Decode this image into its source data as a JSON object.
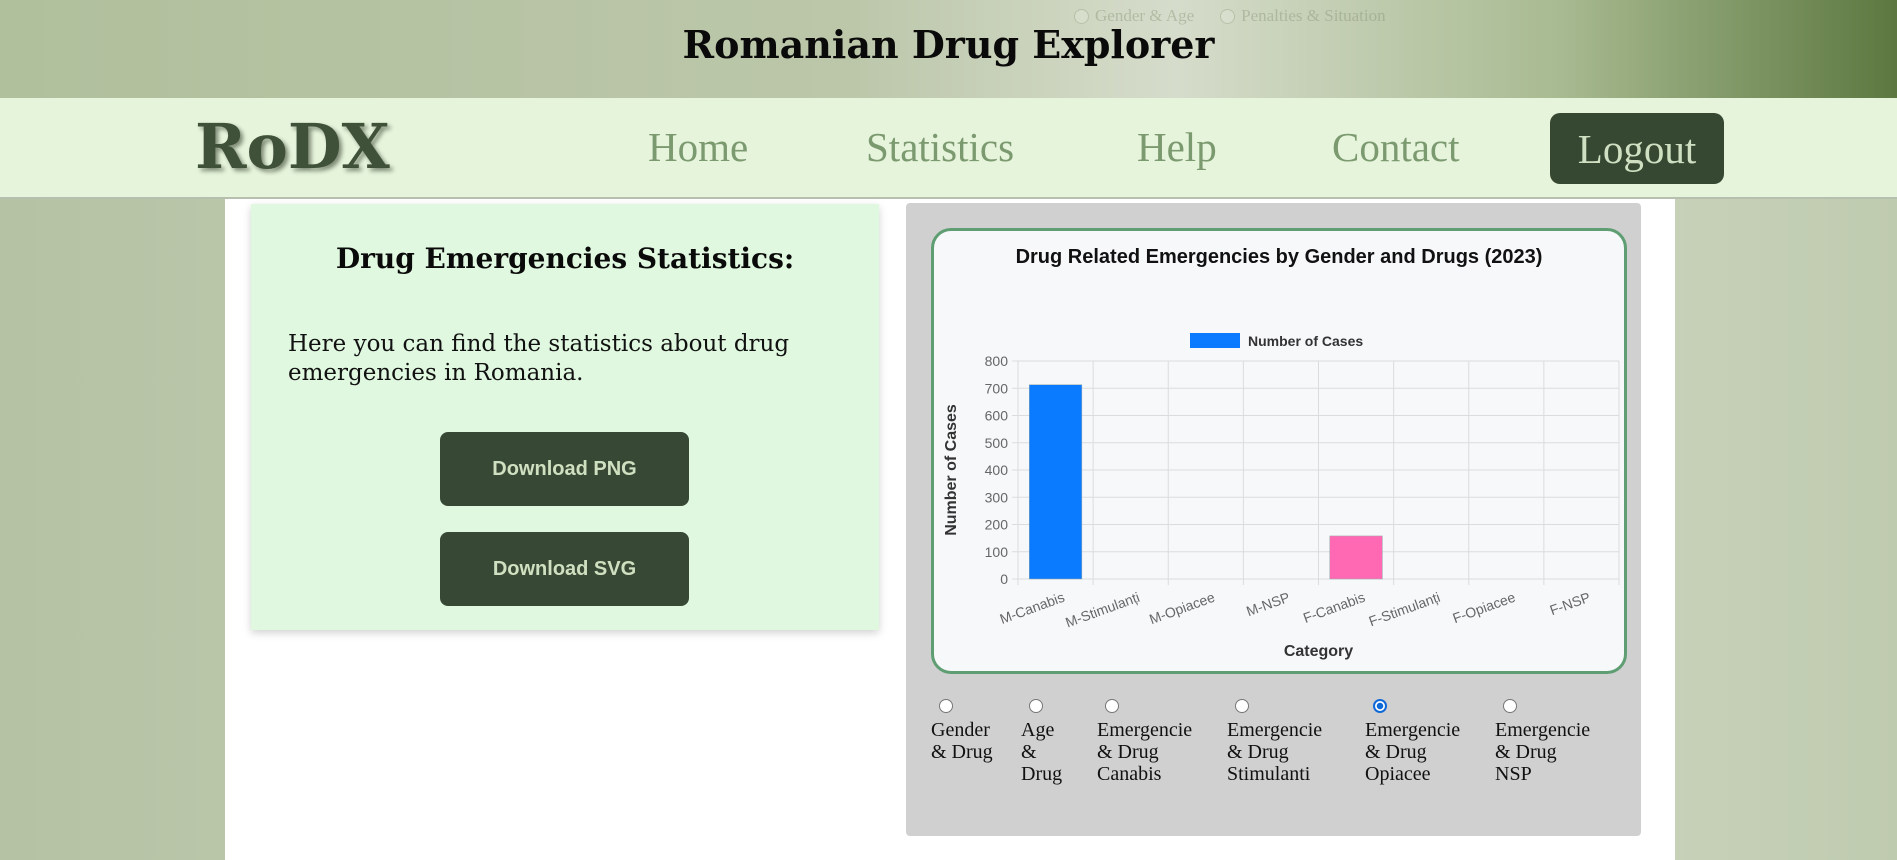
{
  "header": {
    "title": "Romanian Drug Explorer",
    "ghost_options": [
      "Gender & Age",
      "Penalties & Situation"
    ]
  },
  "nav": {
    "logo": "RoDX",
    "links": [
      "Home",
      "Statistics",
      "Help",
      "Contact"
    ],
    "logout": "Logout"
  },
  "info": {
    "title": "Drug Emergencies Statistics:",
    "text": "Here you can find the statistics about drug emergencies in Romania.",
    "download_png": "Download PNG",
    "download_svg": "Download SVG"
  },
  "chart_data": {
    "type": "bar",
    "title": "Drug Related Emergencies by Gender and Drugs (2023)",
    "xlabel": "Category",
    "ylabel": "Number of Cases",
    "ylim": [
      0,
      800
    ],
    "yticks": [
      0,
      100,
      200,
      300,
      400,
      500,
      600,
      700,
      800
    ],
    "categories": [
      "M-Canabis",
      "M-Stimulanți",
      "M-Opiacee",
      "M-NSP",
      "F-Canabis",
      "F-Stimulanți",
      "F-Opiacee",
      "F-NSP"
    ],
    "series": [
      {
        "name": "Number of Cases",
        "values": [
          713,
          0,
          0,
          0,
          158,
          0,
          0,
          0
        ],
        "colors": [
          "#0a7bff",
          "#0a7bff",
          "#0a7bff",
          "#0a7bff",
          "#ff69b4",
          "#ff69b4",
          "#ff69b4",
          "#ff69b4"
        ]
      }
    ],
    "legend": "top",
    "grid": true
  },
  "radio_options": [
    {
      "label": "Gender\n& Drug",
      "checked": false
    },
    {
      "label": "Age\n&\nDrug",
      "checked": false
    },
    {
      "label": "Emergencie\n& Drug\nCanabis",
      "checked": false
    },
    {
      "label": "Emergencie\n& Drug\nStimulanti",
      "checked": false
    },
    {
      "label": "Emergencie\n& Drug\nOpiacee",
      "checked": true
    },
    {
      "label": "Emergencie\n& Drug\nNSP",
      "checked": false
    }
  ]
}
